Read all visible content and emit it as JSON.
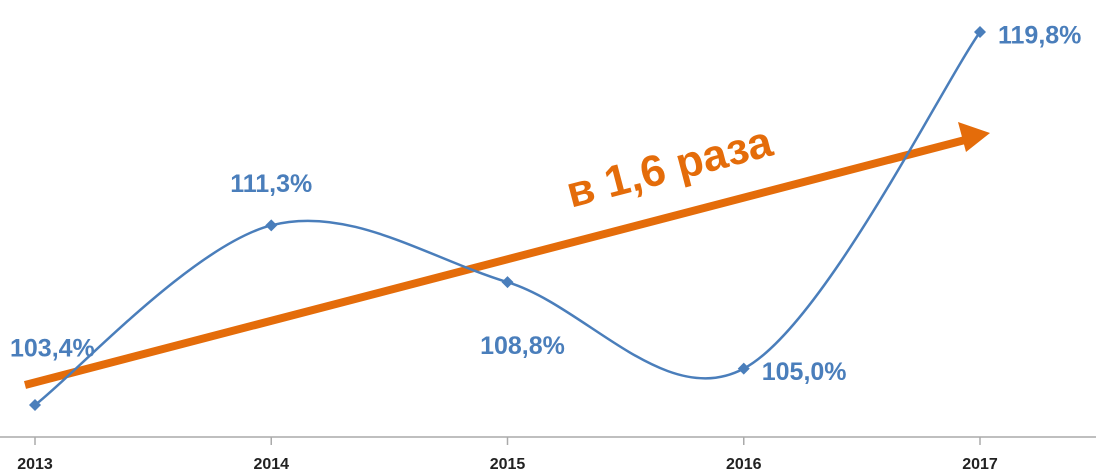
{
  "chart_data": {
    "type": "line",
    "categories": [
      "2013",
      "2014",
      "2015",
      "2016",
      "2017"
    ],
    "values": [
      103.4,
      111.3,
      108.8,
      105.0,
      119.8
    ],
    "value_labels": [
      "103,4%",
      "111,3%",
      "108,8%",
      "105,0%",
      "119,8%"
    ],
    "color": "#4a7ebb",
    "annotation": "в 1,6 раза",
    "annotation_color": "#e46c0a"
  }
}
